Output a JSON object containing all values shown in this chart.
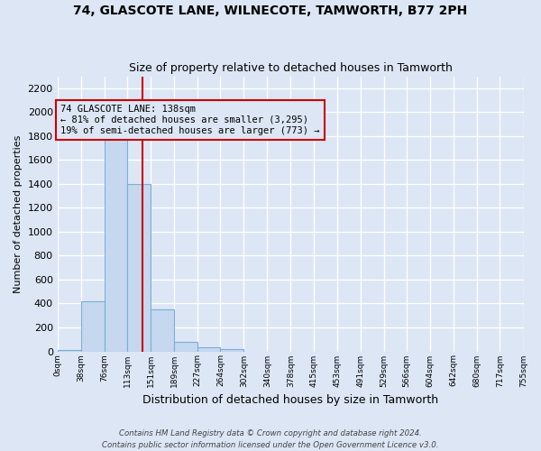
{
  "title": "74, GLASCOTE LANE, WILNECOTE, TAMWORTH, B77 2PH",
  "subtitle": "Size of property relative to detached houses in Tamworth",
  "xlabel": "Distribution of detached houses by size in Tamworth",
  "ylabel": "Number of detached properties",
  "bar_color": "#c5d8f0",
  "bar_edge_color": "#7bafd4",
  "background_color": "#dce6f5",
  "grid_color": "#ffffff",
  "annotation_line_color": "#cc0000",
  "annotation_box_color": "#cc0000",
  "annotation_text": "74 GLASCOTE LANE: 138sqm\n← 81% of detached houses are smaller (3,295)\n19% of semi-detached houses are larger (773) →",
  "property_size": 138,
  "footer_line1": "Contains HM Land Registry data © Crown copyright and database right 2024.",
  "footer_line2": "Contains public sector information licensed under the Open Government Licence v3.0.",
  "bin_edges": [
    0,
    38,
    76,
    113,
    151,
    189,
    227,
    264,
    302,
    340,
    378,
    415,
    453,
    491,
    529,
    566,
    604,
    642,
    680,
    717,
    755
  ],
  "bin_labels": [
    "0sqm",
    "38sqm",
    "76sqm",
    "113sqm",
    "151sqm",
    "189sqm",
    "227sqm",
    "264sqm",
    "302sqm",
    "340sqm",
    "378sqm",
    "415sqm",
    "453sqm",
    "491sqm",
    "529sqm",
    "566sqm",
    "604sqm",
    "642sqm",
    "680sqm",
    "717sqm",
    "755sqm"
  ],
  "bar_heights": [
    15,
    420,
    1800,
    1400,
    350,
    80,
    35,
    20,
    0,
    0,
    0,
    0,
    0,
    0,
    0,
    0,
    0,
    0,
    0,
    0
  ],
  "ylim": [
    0,
    2300
  ],
  "yticks": [
    0,
    200,
    400,
    600,
    800,
    1000,
    1200,
    1400,
    1600,
    1800,
    2000,
    2200
  ]
}
